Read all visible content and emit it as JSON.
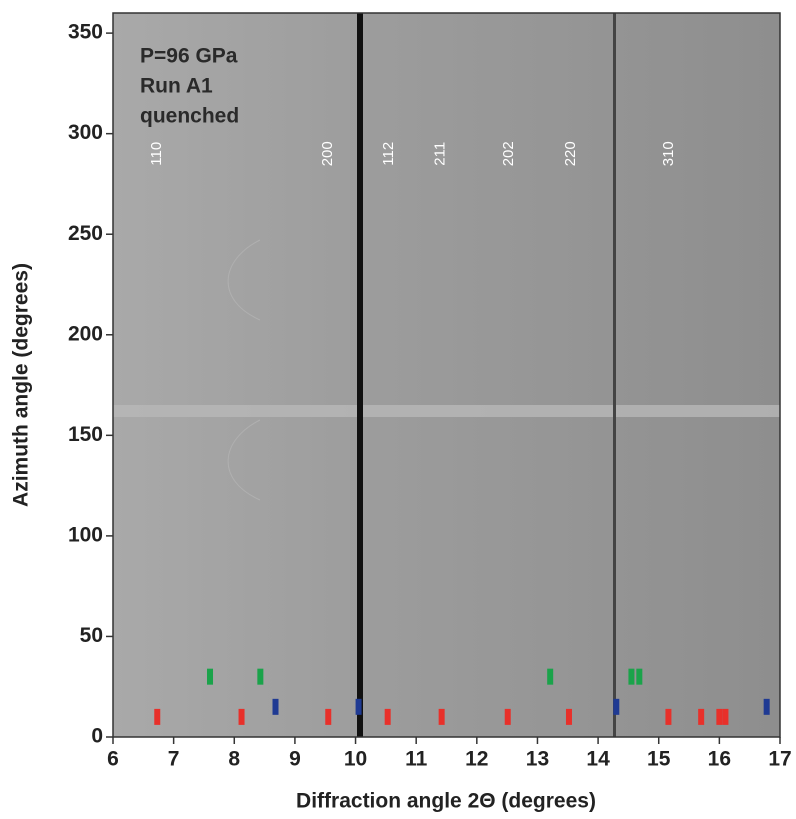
{
  "chart_data": {
    "type": "diffraction-image",
    "xlabel": "Diffraction angle 2Θ (degrees)",
    "ylabel": "Azimuth angle (degrees)",
    "annotation": [
      "P=96 GPa",
      "Run A1",
      "quenched"
    ],
    "xlim": [
      6,
      17
    ],
    "ylim": [
      0,
      360
    ],
    "xticks": [
      6,
      7,
      8,
      9,
      10,
      11,
      12,
      13,
      14,
      15,
      16,
      17
    ],
    "yticks": [
      0,
      50,
      100,
      150,
      200,
      250,
      300,
      350
    ],
    "peak_label_y": 290,
    "peaks": [
      {
        "label": "110",
        "x": 6.73
      },
      {
        "label": "200",
        "x": 9.55
      },
      {
        "label": "112",
        "x": 10.55
      },
      {
        "label": "211",
        "x": 11.4
      },
      {
        "label": "202",
        "x": 12.53
      },
      {
        "label": "220",
        "x": 13.55
      },
      {
        "label": "310",
        "x": 15.17
      }
    ],
    "series": [
      {
        "color": "#e8302a",
        "y": 10,
        "x": [
          6.73,
          8.12,
          9.55,
          10.53,
          11.42,
          12.51,
          13.52,
          15.16,
          15.7,
          16.0,
          16.1
        ]
      },
      {
        "color": "#1f3a93",
        "y": 15,
        "x": [
          8.68,
          10.05,
          14.3,
          16.78
        ]
      },
      {
        "color": "#1aa34a",
        "y": 30,
        "x": [
          7.6,
          8.43,
          13.21,
          14.55,
          14.68
        ]
      }
    ]
  }
}
